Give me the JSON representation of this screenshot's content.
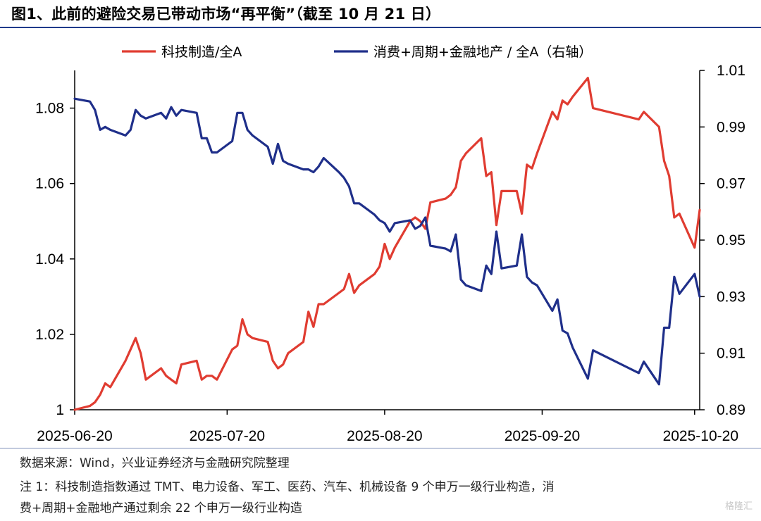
{
  "title": "图1、此前的避险交易已带动市场“再平衡”（截至 10 月 21 日）",
  "source": "数据来源：Wind，兴业证券经济与金融研究院整理",
  "note_line1": "注 1：科技制造指数通过 TMT、电力设备、军工、医药、汽车、机械设备 9 个申万一级行业构造，消",
  "note_line2": "费+周期+金融地产通过剩余 22 个申万一级行业构造",
  "watermark": "格隆汇",
  "colors": {
    "series_left": "#e03c31",
    "series_right": "#1f2f8a",
    "axis": "#000000"
  },
  "chart_data": {
    "type": "line",
    "x_ticks": [
      "2025-06-20",
      "2025-07-20",
      "2025-08-20",
      "2025-09-20",
      "2025-10-20"
    ],
    "x_range": [
      "2025-06-20",
      "2025-10-21"
    ],
    "y_left": {
      "range": [
        1.0,
        1.09
      ],
      "ticks": [
        "1",
        "1.02",
        "1.04",
        "1.06",
        "1.08"
      ]
    },
    "y_right": {
      "range": [
        0.89,
        1.01
      ],
      "ticks": [
        "0.89",
        "0.91",
        "0.93",
        "0.95",
        "0.97",
        "0.99",
        "1.01"
      ]
    },
    "legend_position": "top",
    "series": [
      {
        "name": "科技制造/全A",
        "axis": "left",
        "points": [
          [
            "2025-06-20",
            1.0
          ],
          [
            "2025-06-23",
            1.001
          ],
          [
            "2025-06-24",
            1.002
          ],
          [
            "2025-06-25",
            1.004
          ],
          [
            "2025-06-26",
            1.007
          ],
          [
            "2025-06-27",
            1.006
          ],
          [
            "2025-06-30",
            1.013
          ],
          [
            "2025-07-01",
            1.016
          ],
          [
            "2025-07-02",
            1.019
          ],
          [
            "2025-07-03",
            1.015
          ],
          [
            "2025-07-04",
            1.008
          ],
          [
            "2025-07-07",
            1.011
          ],
          [
            "2025-07-08",
            1.009
          ],
          [
            "2025-07-09",
            1.008
          ],
          [
            "2025-07-10",
            1.007
          ],
          [
            "2025-07-11",
            1.012
          ],
          [
            "2025-07-14",
            1.013
          ],
          [
            "2025-07-15",
            1.008
          ],
          [
            "2025-07-16",
            1.009
          ],
          [
            "2025-07-17",
            1.009
          ],
          [
            "2025-07-18",
            1.008
          ],
          [
            "2025-07-21",
            1.016
          ],
          [
            "2025-07-22",
            1.017
          ],
          [
            "2025-07-23",
            1.024
          ],
          [
            "2025-07-24",
            1.02
          ],
          [
            "2025-07-25",
            1.019
          ],
          [
            "2025-07-28",
            1.018
          ],
          [
            "2025-07-29",
            1.013
          ],
          [
            "2025-07-30",
            1.011
          ],
          [
            "2025-07-31",
            1.012
          ],
          [
            "2025-08-01",
            1.015
          ],
          [
            "2025-08-04",
            1.018
          ],
          [
            "2025-08-05",
            1.026
          ],
          [
            "2025-08-06",
            1.022
          ],
          [
            "2025-08-07",
            1.028
          ],
          [
            "2025-08-08",
            1.028
          ],
          [
            "2025-08-11",
            1.031
          ],
          [
            "2025-08-12",
            1.032
          ],
          [
            "2025-08-13",
            1.036
          ],
          [
            "2025-08-14",
            1.031
          ],
          [
            "2025-08-15",
            1.033
          ],
          [
            "2025-08-18",
            1.036
          ],
          [
            "2025-08-19",
            1.038
          ],
          [
            "2025-08-20",
            1.044
          ],
          [
            "2025-08-21",
            1.04
          ],
          [
            "2025-08-22",
            1.043
          ],
          [
            "2025-08-25",
            1.05
          ],
          [
            "2025-08-26",
            1.051
          ],
          [
            "2025-08-27",
            1.05
          ],
          [
            "2025-08-28",
            1.048
          ],
          [
            "2025-08-29",
            1.055
          ],
          [
            "2025-09-01",
            1.056
          ],
          [
            "2025-09-02",
            1.057
          ],
          [
            "2025-09-03",
            1.059
          ],
          [
            "2025-09-04",
            1.066
          ],
          [
            "2025-09-05",
            1.068
          ],
          [
            "2025-09-08",
            1.072
          ],
          [
            "2025-09-09",
            1.062
          ],
          [
            "2025-09-10",
            1.063
          ],
          [
            "2025-09-11",
            1.049
          ],
          [
            "2025-09-12",
            1.058
          ],
          [
            "2025-09-15",
            1.058
          ],
          [
            "2025-09-16",
            1.052
          ],
          [
            "2025-09-17",
            1.065
          ],
          [
            "2025-09-18",
            1.064
          ],
          [
            "2025-09-19",
            1.068
          ],
          [
            "2025-09-22",
            1.079
          ],
          [
            "2025-09-23",
            1.077
          ],
          [
            "2025-09-24",
            1.082
          ],
          [
            "2025-09-25",
            1.081
          ],
          [
            "2025-09-26",
            1.083
          ],
          [
            "2025-09-29",
            1.088
          ],
          [
            "2025-09-30",
            1.08
          ],
          [
            "2025-10-09",
            1.077
          ],
          [
            "2025-10-10",
            1.079
          ],
          [
            "2025-10-13",
            1.075
          ],
          [
            "2025-10-14",
            1.066
          ],
          [
            "2025-10-15",
            1.062
          ],
          [
            "2025-10-16",
            1.051
          ],
          [
            "2025-10-17",
            1.052
          ],
          [
            "2025-10-20",
            1.043
          ],
          [
            "2025-10-21",
            1.053
          ]
        ]
      },
      {
        "name": "消费+周期+金融地产 / 全A（右轴）",
        "axis": "right",
        "points": [
          [
            "2025-06-20",
            1.0
          ],
          [
            "2025-06-23",
            0.999
          ],
          [
            "2025-06-24",
            0.996
          ],
          [
            "2025-06-25",
            0.989
          ],
          [
            "2025-06-26",
            0.99
          ],
          [
            "2025-06-27",
            0.989
          ],
          [
            "2025-06-30",
            0.987
          ],
          [
            "2025-07-01",
            0.989
          ],
          [
            "2025-07-02",
            0.996
          ],
          [
            "2025-07-03",
            0.994
          ],
          [
            "2025-07-04",
            0.993
          ],
          [
            "2025-07-07",
            0.995
          ],
          [
            "2025-07-08",
            0.993
          ],
          [
            "2025-07-09",
            0.997
          ],
          [
            "2025-07-10",
            0.994
          ],
          [
            "2025-07-11",
            0.996
          ],
          [
            "2025-07-14",
            0.995
          ],
          [
            "2025-07-15",
            0.986
          ],
          [
            "2025-07-16",
            0.986
          ],
          [
            "2025-07-17",
            0.981
          ],
          [
            "2025-07-18",
            0.981
          ],
          [
            "2025-07-21",
            0.985
          ],
          [
            "2025-07-22",
            0.995
          ],
          [
            "2025-07-23",
            0.995
          ],
          [
            "2025-07-24",
            0.989
          ],
          [
            "2025-07-25",
            0.987
          ],
          [
            "2025-07-28",
            0.983
          ],
          [
            "2025-07-29",
            0.977
          ],
          [
            "2025-07-30",
            0.984
          ],
          [
            "2025-07-31",
            0.978
          ],
          [
            "2025-08-01",
            0.977
          ],
          [
            "2025-08-04",
            0.975
          ],
          [
            "2025-08-05",
            0.975
          ],
          [
            "2025-08-06",
            0.974
          ],
          [
            "2025-08-07",
            0.976
          ],
          [
            "2025-08-08",
            0.979
          ],
          [
            "2025-08-11",
            0.974
          ],
          [
            "2025-08-12",
            0.972
          ],
          [
            "2025-08-13",
            0.969
          ],
          [
            "2025-08-14",
            0.963
          ],
          [
            "2025-08-15",
            0.963
          ],
          [
            "2025-08-18",
            0.959
          ],
          [
            "2025-08-19",
            0.957
          ],
          [
            "2025-08-20",
            0.956
          ],
          [
            "2025-08-21",
            0.953
          ],
          [
            "2025-08-22",
            0.956
          ],
          [
            "2025-08-25",
            0.957
          ],
          [
            "2025-08-26",
            0.954
          ],
          [
            "2025-08-27",
            0.955
          ],
          [
            "2025-08-28",
            0.958
          ],
          [
            "2025-08-29",
            0.948
          ],
          [
            "2025-09-01",
            0.947
          ],
          [
            "2025-09-02",
            0.946
          ],
          [
            "2025-09-03",
            0.952
          ],
          [
            "2025-09-04",
            0.936
          ],
          [
            "2025-09-05",
            0.934
          ],
          [
            "2025-09-08",
            0.932
          ],
          [
            "2025-09-09",
            0.941
          ],
          [
            "2025-09-10",
            0.938
          ],
          [
            "2025-09-11",
            0.953
          ],
          [
            "2025-09-12",
            0.94
          ],
          [
            "2025-09-15",
            0.941
          ],
          [
            "2025-09-16",
            0.952
          ],
          [
            "2025-09-17",
            0.937
          ],
          [
            "2025-09-18",
            0.935
          ],
          [
            "2025-09-19",
            0.934
          ],
          [
            "2025-09-22",
            0.925
          ],
          [
            "2025-09-23",
            0.929
          ],
          [
            "2025-09-24",
            0.918
          ],
          [
            "2025-09-25",
            0.917
          ],
          [
            "2025-09-26",
            0.912
          ],
          [
            "2025-09-29",
            0.901
          ],
          [
            "2025-09-30",
            0.911
          ],
          [
            "2025-10-09",
            0.903
          ],
          [
            "2025-10-10",
            0.907
          ],
          [
            "2025-10-13",
            0.899
          ],
          [
            "2025-10-14",
            0.919
          ],
          [
            "2025-10-15",
            0.919
          ],
          [
            "2025-10-16",
            0.937
          ],
          [
            "2025-10-17",
            0.931
          ],
          [
            "2025-10-20",
            0.938
          ],
          [
            "2025-10-21",
            0.93
          ]
        ]
      }
    ]
  }
}
